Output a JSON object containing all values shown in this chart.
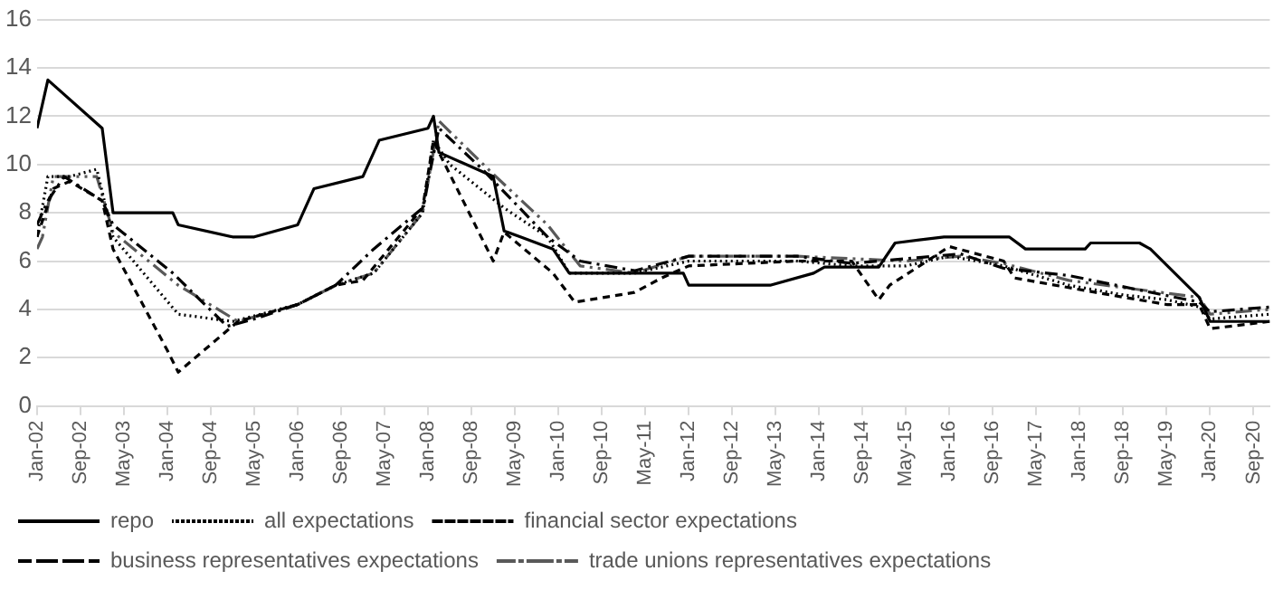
{
  "chart_data": {
    "type": "line",
    "xlim": [
      "2002-01",
      "2020-12"
    ],
    "ylim": [
      0,
      16
    ],
    "yticks": [
      0,
      2,
      4,
      6,
      8,
      10,
      12,
      14,
      16
    ],
    "xticks": [
      {
        "value": "2002-01",
        "label": "Jan-02"
      },
      {
        "value": "2002-09",
        "label": "Sep-02"
      },
      {
        "value": "2003-05",
        "label": "May-03"
      },
      {
        "value": "2004-01",
        "label": "Jan-04"
      },
      {
        "value": "2004-09",
        "label": "Sep-04"
      },
      {
        "value": "2005-05",
        "label": "May-05"
      },
      {
        "value": "2006-01",
        "label": "Jan-06"
      },
      {
        "value": "2006-09",
        "label": "Sep-06"
      },
      {
        "value": "2007-05",
        "label": "May-07"
      },
      {
        "value": "2008-01",
        "label": "Jan-08"
      },
      {
        "value": "2008-09",
        "label": "Sep-08"
      },
      {
        "value": "2009-05",
        "label": "May-09"
      },
      {
        "value": "2010-01",
        "label": "Jan-10"
      },
      {
        "value": "2010-09",
        "label": "Sep-10"
      },
      {
        "value": "2011-05",
        "label": "May-11"
      },
      {
        "value": "2012-01",
        "label": "Jan-12"
      },
      {
        "value": "2012-09",
        "label": "Sep-12"
      },
      {
        "value": "2013-05",
        "label": "May-13"
      },
      {
        "value": "2014-01",
        "label": "Jan-14"
      },
      {
        "value": "2014-09",
        "label": "Sep-14"
      },
      {
        "value": "2015-05",
        "label": "May-15"
      },
      {
        "value": "2016-01",
        "label": "Jan-16"
      },
      {
        "value": "2016-09",
        "label": "Sep-16"
      },
      {
        "value": "2017-05",
        "label": "May-17"
      },
      {
        "value": "2018-01",
        "label": "Jan-18"
      },
      {
        "value": "2018-09",
        "label": "Sep-18"
      },
      {
        "value": "2019-05",
        "label": "May-19"
      },
      {
        "value": "2020-01",
        "label": "Jan-20"
      },
      {
        "value": "2020-09",
        "label": "Sep-20"
      }
    ],
    "grid": "y",
    "legend": "bottom",
    "marker": "none",
    "series": [
      {
        "name": "repo",
        "color": "#000000",
        "line_style": "solid",
        "x": [
          "2002-01",
          "2002-03",
          "2003-01",
          "2003-03",
          "2004-02",
          "2004-03",
          "2005-01",
          "2005-05",
          "2006-01",
          "2006-04",
          "2007-01",
          "2007-04",
          "2008-01",
          "2008-02",
          "2008-03",
          "2009-01",
          "2009-03",
          "2009-06",
          "2009-12",
          "2010-03",
          "2011-12",
          "2012-01",
          "2013-04",
          "2013-12",
          "2014-02",
          "2014-12",
          "2015-03",
          "2015-12",
          "2016-12",
          "2017-03",
          "2018-02",
          "2018-03",
          "2018-12",
          "2019-02",
          "2019-11",
          "2020-01",
          "2020-12"
        ],
        "values": [
          11.5,
          13.5,
          11.5,
          8,
          8,
          7.5,
          7,
          7,
          7.5,
          9,
          9.5,
          11,
          11.5,
          12,
          10.5,
          9.5,
          7.25,
          7,
          6.5,
          5.5,
          5.5,
          5,
          5,
          5.5,
          5.75,
          5.75,
          6.75,
          7,
          7,
          6.5,
          6.5,
          6.75,
          6.75,
          6.5,
          4.5,
          3.5,
          3.5
        ]
      },
      {
        "name": "all expectations",
        "color": "#000000",
        "line_style": "dotted",
        "x": [
          "2002-01",
          "2002-03",
          "2002-07",
          "2002-12",
          "2003-03",
          "2004-03",
          "2005-01",
          "2006-01",
          "2006-08",
          "2007-03",
          "2007-12",
          "2008-02",
          "2008-05",
          "2009-03",
          "2009-11",
          "2010-03",
          "2011-03",
          "2012-01",
          "2013-09",
          "2014-07",
          "2015-05",
          "2016-01",
          "2016-11",
          "2017-11",
          "2018-09",
          "2019-05",
          "2019-11",
          "2020-01",
          "2020-12"
        ],
        "values": [
          7,
          9.5,
          9.5,
          9.8,
          7,
          3.8,
          3.5,
          4.2,
          5,
          5.5,
          8,
          11,
          10,
          8.2,
          7,
          5.5,
          5.5,
          6,
          6,
          5.8,
          5.8,
          6.2,
          5.8,
          5,
          4.6,
          4.4,
          4.1,
          3.6,
          3.8
        ]
      },
      {
        "name": "financial sector expectations",
        "color": "#000000",
        "line_style": "dashed",
        "x": [
          "2002-01",
          "2002-04",
          "2002-07",
          "2003-01",
          "2003-03",
          "2004-01",
          "2004-03",
          "2005-02",
          "2006-01",
          "2006-08",
          "2007-01",
          "2007-12",
          "2008-02",
          "2008-03",
          "2009-01",
          "2009-03",
          "2009-12",
          "2010-04",
          "2011-03",
          "2011-08",
          "2012-01",
          "2013-09",
          "2014-07",
          "2014-12",
          "2015-02",
          "2016-01",
          "2016-11",
          "2017-01",
          "2018-04",
          "2019-05",
          "2019-11",
          "2020-01",
          "2020-12"
        ],
        "values": [
          7,
          9,
          9.3,
          8.5,
          6.5,
          2.3,
          1.4,
          3.5,
          4.2,
          5,
          5.2,
          8.2,
          11,
          10.5,
          6,
          7.2,
          5.5,
          4.3,
          4.7,
          5.3,
          5.8,
          6,
          6,
          4.4,
          5,
          6.6,
          6,
          5.3,
          4.7,
          4.2,
          4.2,
          3.2,
          3.5
        ]
      },
      {
        "name": "business representatives expectations",
        "color": "#000000",
        "line_style": "dashdot",
        "x": [
          "2002-01",
          "2002-03",
          "2002-06",
          "2003-01",
          "2003-03",
          "2004-02",
          "2004-12",
          "2005-05",
          "2006-01",
          "2006-08",
          "2007-03",
          "2007-12",
          "2008-03",
          "2008-11",
          "2009-11",
          "2010-05",
          "2011-03",
          "2012-01",
          "2013-09",
          "2014-07",
          "2015-05",
          "2016-03",
          "2016-11",
          "2017-11",
          "2018-12",
          "2019-11",
          "2020-01",
          "2020-12"
        ],
        "values": [
          7.5,
          8.5,
          9.5,
          8.5,
          7.5,
          5.5,
          3.3,
          3.6,
          4.2,
          5,
          6.5,
          8.2,
          11.5,
          9.8,
          7,
          6,
          5.6,
          6.2,
          6.2,
          5.9,
          6.1,
          6.3,
          5.7,
          5.4,
          4.8,
          4.3,
          3.9,
          4.1
        ]
      },
      {
        "name": "trade unions representatives expectations",
        "color": "#595959",
        "line_style": "longdashdotdot",
        "x": [
          "2002-01",
          "2002-02",
          "2002-04",
          "2002-12",
          "2003-03",
          "2004-03",
          "2005-02",
          "2006-01",
          "2006-08",
          "2007-03",
          "2007-12",
          "2008-03",
          "2009-01",
          "2009-11",
          "2010-05",
          "2011-03",
          "2012-01",
          "2013-09",
          "2014-07",
          "2015-05",
          "2016-03",
          "2016-11",
          "2017-11",
          "2018-09",
          "2019-11",
          "2020-01",
          "2020-12"
        ],
        "values": [
          6.5,
          7,
          9.5,
          9.5,
          7.2,
          5,
          3.5,
          4.2,
          5,
          5.5,
          8,
          11.8,
          9.6,
          7.5,
          5.8,
          5.5,
          6.2,
          6.2,
          6.1,
          6,
          6.2,
          5.9,
          5.2,
          4.9,
          4.5,
          3.8,
          4
        ]
      }
    ]
  }
}
